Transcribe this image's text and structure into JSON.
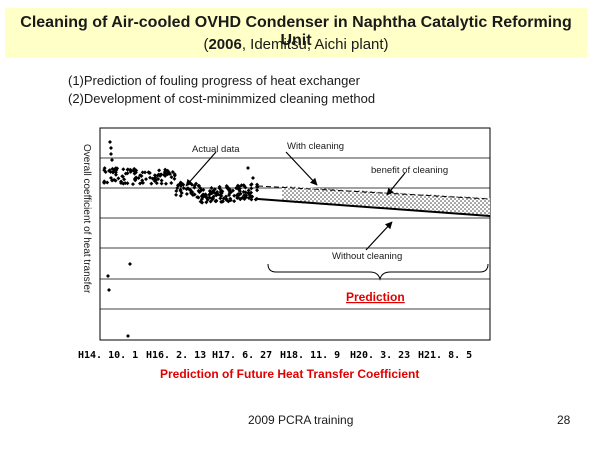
{
  "header": {
    "title": "Cleaning of Air-cooled OVHD Condenser in Naphtha Catalytic Reforming Unit",
    "subtitle_open": "(",
    "subtitle_bold": "2006",
    "subtitle_rest": ", Idemitsu, Aichi plant)"
  },
  "objectives": [
    "(1)Prediction of fouling progress of heat exchanger",
    "(2)Development of cost-minimmized cleaning method"
  ],
  "chart_data": {
    "type": "line",
    "title": "",
    "xlabel": "Prediction of Future Heat Transfer Coefficient",
    "ylabel": "Overall coefficient of heat transfer",
    "x_ticks": [
      "H14. 10. 1",
      "H16. 2. 13",
      "H17. 6. 27",
      "H18. 11. 9",
      "H20. 3. 23",
      "H21. 8. 5"
    ],
    "y_tick_labels": [],
    "grid": true,
    "annotations": {
      "actual": "Actual data",
      "with_cleaning": "With cleaning",
      "benefit": "benefit of cleaning",
      "without_cleaning": "Without cleaning",
      "prediction": "Prediction"
    },
    "series": [
      {
        "role": "actual",
        "x": [
          "H15.1",
          "H15.6",
          "H15.10",
          "H16.2",
          "H16.8",
          "H17.2",
          "H17.8",
          "H18.1"
        ],
        "y_rel": [
          0.72,
          0.7,
          0.71,
          0.69,
          0.63,
          0.62,
          0.63,
          0.64
        ]
      },
      {
        "name": "With cleaning",
        "x": [
          "H18.1",
          "H21.11"
        ],
        "y_rel": [
          0.65,
          0.59
        ]
      },
      {
        "name": "Without cleaning",
        "x": [
          "H18.1",
          "H21.11"
        ],
        "y_rel": [
          0.61,
          0.48
        ]
      }
    ]
  },
  "footer": {
    "center": "2009 PCRA training",
    "page": "28"
  }
}
